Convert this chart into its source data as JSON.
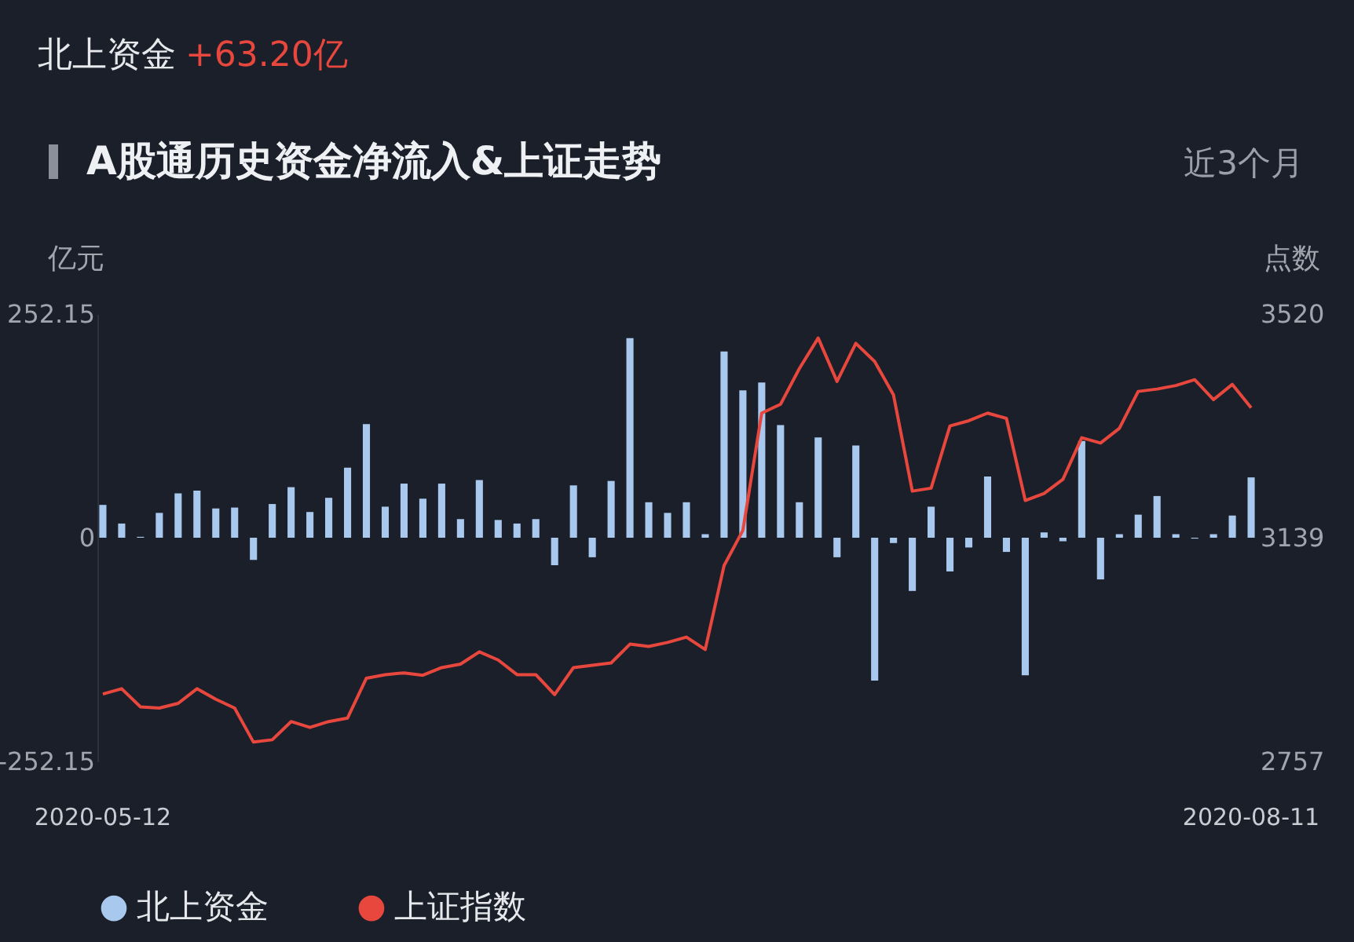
{
  "chart_data": {
    "type": "bar",
    "title": "A股通历史资金净流入&上证走势",
    "annotations": [
      "北上资金",
      "+63.20亿",
      "近3个月"
    ],
    "ylabel": "亿元",
    "y2label": "点数",
    "categories": [
      "2020-05-12",
      null,
      null,
      null,
      null,
      null,
      null,
      null,
      null,
      null,
      null,
      null,
      null,
      null,
      null,
      null,
      null,
      null,
      null,
      null,
      null,
      null,
      null,
      null,
      null,
      null,
      null,
      null,
      null,
      null,
      null,
      null,
      null,
      null,
      null,
      null,
      null,
      null,
      null,
      null,
      null,
      null,
      null,
      null,
      null,
      null,
      null,
      null,
      null,
      null,
      null,
      null,
      null,
      null,
      null,
      null,
      null,
      null,
      null,
      null,
      null,
      "2020-08-11"
    ],
    "series": [
      {
        "name": "北上资金",
        "color": "#a8c8ee",
        "values": [
          37,
          16,
          1,
          28,
          50,
          53,
          33,
          34,
          -25,
          38,
          57,
          29,
          45,
          79,
          128,
          35,
          61,
          44,
          61,
          21,
          65,
          20,
          16,
          21,
          -31,
          59,
          -22,
          64,
          225,
          40,
          28,
          40,
          4,
          210,
          166,
          175,
          127,
          40,
          113,
          -22,
          104,
          -161,
          -6,
          -60,
          35,
          -38,
          -11,
          69,
          -16,
          -155,
          6,
          -4,
          109,
          -47,
          4,
          26,
          47,
          4,
          -1,
          4,
          25,
          68
        ]
      },
      {
        "name": "上证指数",
        "type": "line",
        "axis": "y2",
        "color": "#e8473d",
        "values": [
          2872,
          2881,
          2850,
          2848,
          2856,
          2881,
          2863,
          2848,
          2790,
          2794,
          2825,
          2815,
          2825,
          2831,
          2899,
          2905,
          2908,
          2904,
          2917,
          2923,
          2944,
          2930,
          2905,
          2905,
          2871,
          2917,
          2921,
          2925,
          2957,
          2953,
          2960,
          2969,
          2948,
          3091,
          3151,
          3351,
          3366,
          3427,
          3479,
          3405,
          3470,
          3439,
          3382,
          3218,
          3223,
          3329,
          3338,
          3351,
          3342,
          3202,
          3214,
          3238,
          3309,
          3300,
          3325,
          3388,
          3392,
          3398,
          3408,
          3374,
          3400,
          3360
        ]
      }
    ],
    "ylim": [
      -252.15,
      252.15
    ],
    "yticks": [
      -252.15,
      0,
      252.15
    ],
    "y2lim": [
      2757,
      3520
    ],
    "y2ticks": [
      2757,
      3139,
      3520
    ],
    "grid": false,
    "legend": "bottom",
    "marker": "none",
    "line_style": "solid"
  }
}
